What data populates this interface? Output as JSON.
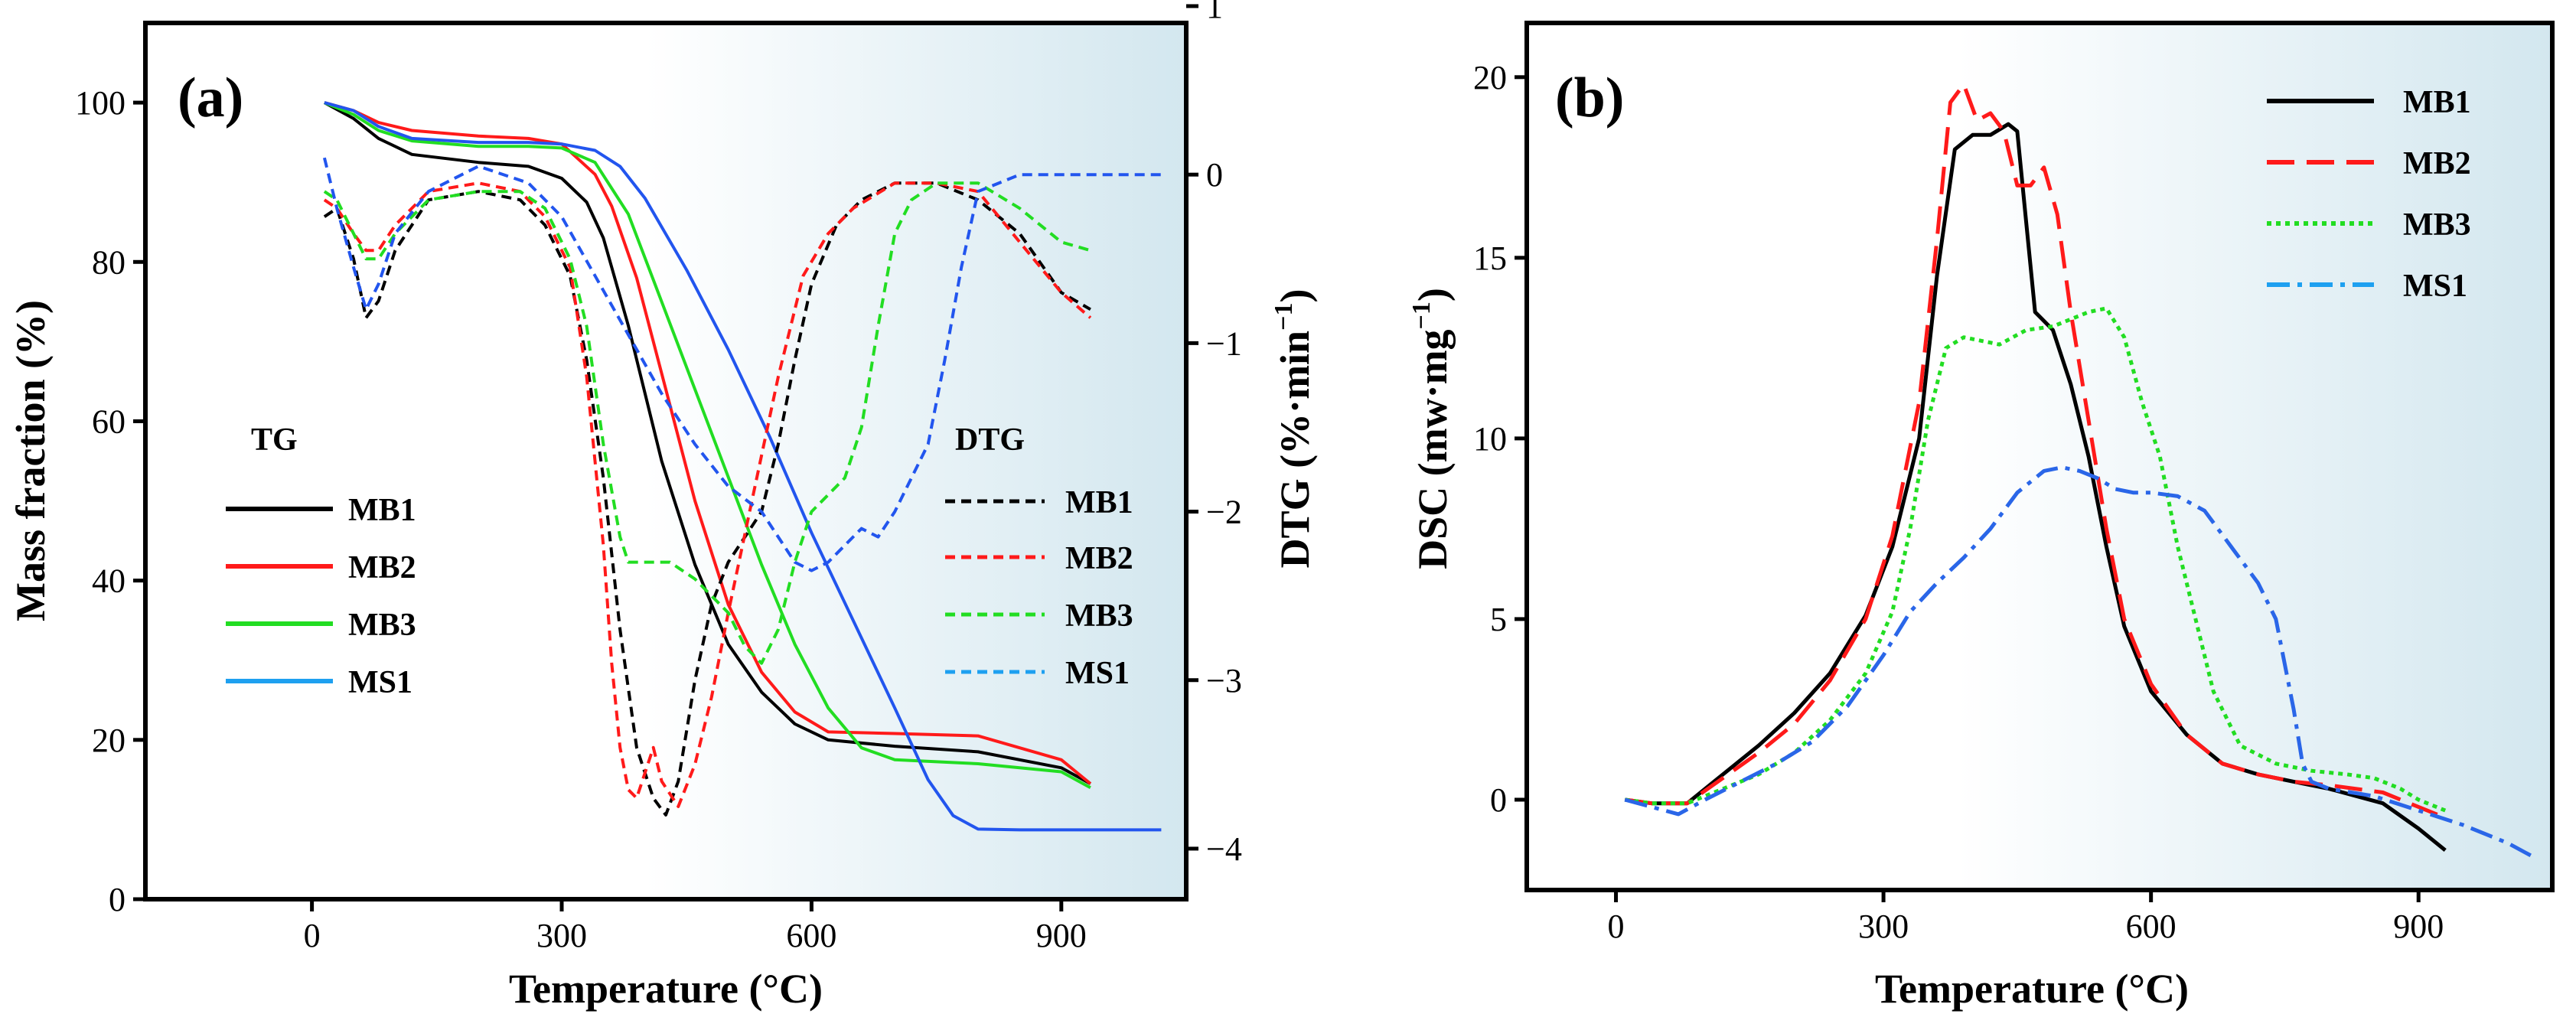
{
  "colors": {
    "MB1": "#000000",
    "MB2": "#ff1a1a",
    "MB3": "#22dd22",
    "MS1": "#2255ee",
    "MS1_dsc": "#2a66e8",
    "MS1_legend_line": "#1ea0f0",
    "background_tint": "#d8eaf0"
  },
  "chart_data": [
    {
      "id": "a",
      "panel_label": "(a)",
      "type": "line",
      "xlabel": "Temperature (°C)",
      "ylabel": "Mass fraction (%)",
      "y2label": "DTG (%·min",
      "y2label_sup": "−1",
      "y2label_close": ")",
      "xlim": [
        -200,
        1050
      ],
      "ylim": [
        0,
        110
      ],
      "y2lim": [
        -4.3,
        0.9
      ],
      "xticks": [
        0,
        300,
        600,
        900
      ],
      "yticks": [
        0,
        20,
        40,
        60,
        80,
        100
      ],
      "y2ticks": [
        1,
        0,
        -1,
        -2,
        -3,
        -4
      ],
      "legend_groups": [
        {
          "title": "TG",
          "items": [
            "MB1",
            "MB2",
            "MB3",
            "MS1"
          ],
          "style": "solid",
          "placement": "center-left"
        },
        {
          "title": "DTG",
          "items": [
            "MB1",
            "MB2",
            "MB3",
            "MS1"
          ],
          "style": "dashed",
          "placement": "center-right"
        }
      ],
      "tg_series": [
        {
          "name": "MB1",
          "x": [
            15,
            50,
            80,
            120,
            200,
            260,
            300,
            330,
            350,
            380,
            420,
            460,
            500,
            540,
            580,
            620,
            700,
            800,
            900,
            935
          ],
          "y": [
            100,
            98,
            95.5,
            93.5,
            92.5,
            92,
            90.5,
            87.5,
            83,
            72,
            55,
            42,
            32,
            26,
            22,
            20,
            19.2,
            18.5,
            16.5,
            14.5
          ]
        },
        {
          "name": "MB2",
          "x": [
            15,
            50,
            80,
            120,
            200,
            260,
            300,
            340,
            360,
            390,
            420,
            460,
            500,
            540,
            580,
            620,
            700,
            800,
            900,
            935
          ],
          "y": [
            100,
            99,
            97.5,
            96.5,
            95.8,
            95.5,
            94.8,
            91,
            87,
            78,
            66,
            50,
            37,
            28.5,
            23.5,
            21,
            20.8,
            20.5,
            17.5,
            14.5
          ]
        },
        {
          "name": "MB3",
          "x": [
            15,
            50,
            80,
            120,
            200,
            260,
            300,
            340,
            380,
            420,
            460,
            500,
            540,
            580,
            620,
            660,
            700,
            800,
            900,
            935
          ],
          "y": [
            100,
            98.5,
            96.5,
            95.2,
            94.5,
            94.5,
            94.3,
            92.5,
            86,
            75,
            64,
            53,
            42,
            32,
            24,
            19,
            17.5,
            17,
            16,
            14
          ]
        },
        {
          "name": "MS1",
          "x": [
            15,
            50,
            80,
            120,
            200,
            260,
            300,
            340,
            370,
            400,
            450,
            500,
            550,
            600,
            650,
            700,
            740,
            770,
            800,
            850,
            950,
            1020
          ],
          "y": [
            100,
            99,
            97,
            95.5,
            95,
            95,
            94.8,
            94,
            92,
            88,
            79,
            69,
            58,
            46,
            35,
            24,
            15,
            10.5,
            8.8,
            8.7,
            8.7,
            8.7
          ]
        }
      ],
      "dtg_series": [
        {
          "name": "MB1",
          "x": [
            15,
            30,
            50,
            65,
            80,
            100,
            140,
            200,
            250,
            280,
            310,
            330,
            350,
            370,
            390,
            410,
            425,
            440,
            460,
            480,
            500,
            520,
            540,
            560,
            580,
            600,
            630,
            660,
            700,
            750,
            800,
            850,
            900,
            935
          ],
          "y": [
            -0.25,
            -0.2,
            -0.5,
            -0.85,
            -0.75,
            -0.45,
            -0.15,
            -0.1,
            -0.15,
            -0.3,
            -0.6,
            -1.1,
            -1.8,
            -2.7,
            -3.4,
            -3.7,
            -3.8,
            -3.6,
            -3.0,
            -2.55,
            -2.3,
            -2.15,
            -2.0,
            -1.6,
            -1.1,
            -0.65,
            -0.3,
            -0.15,
            -0.05,
            -0.05,
            -0.15,
            -0.35,
            -0.7,
            -0.8
          ]
        },
        {
          "name": "MB2",
          "x": [
            15,
            30,
            50,
            65,
            80,
            100,
            140,
            200,
            250,
            280,
            310,
            330,
            350,
            360,
            370,
            380,
            390,
            400,
            410,
            420,
            440,
            460,
            480,
            500,
            530,
            560,
            590,
            620,
            650,
            700,
            750,
            800,
            850,
            900,
            935
          ],
          "y": [
            -0.15,
            -0.2,
            -0.35,
            -0.45,
            -0.45,
            -0.3,
            -0.1,
            -0.05,
            -0.1,
            -0.25,
            -0.55,
            -1.2,
            -2.2,
            -2.9,
            -3.4,
            -3.65,
            -3.7,
            -3.55,
            -3.4,
            -3.6,
            -3.75,
            -3.5,
            -3.1,
            -2.6,
            -1.9,
            -1.2,
            -0.6,
            -0.35,
            -0.2,
            -0.05,
            -0.05,
            -0.1,
            -0.4,
            -0.7,
            -0.85
          ]
        },
        {
          "name": "MB3",
          "x": [
            15,
            30,
            50,
            65,
            80,
            100,
            140,
            200,
            250,
            280,
            310,
            330,
            350,
            370,
            380,
            400,
            430,
            460,
            480,
            500,
            520,
            540,
            560,
            580,
            600,
            620,
            640,
            660,
            680,
            700,
            720,
            750,
            800,
            850,
            900,
            935
          ],
          "y": [
            -0.1,
            -0.15,
            -0.35,
            -0.5,
            -0.5,
            -0.35,
            -0.15,
            -0.1,
            -0.1,
            -0.2,
            -0.5,
            -0.9,
            -1.6,
            -2.15,
            -2.3,
            -2.3,
            -2.3,
            -2.4,
            -2.5,
            -2.6,
            -2.8,
            -2.9,
            -2.7,
            -2.3,
            -2.0,
            -1.9,
            -1.8,
            -1.5,
            -0.9,
            -0.35,
            -0.15,
            -0.05,
            -0.05,
            -0.2,
            -0.4,
            -0.45
          ]
        },
        {
          "name": "MS1",
          "x": [
            15,
            30,
            50,
            65,
            80,
            100,
            140,
            200,
            260,
            300,
            340,
            380,
            420,
            460,
            500,
            540,
            580,
            600,
            620,
            640,
            660,
            680,
            700,
            720,
            740,
            760,
            780,
            800,
            850,
            900,
            950,
            1020
          ],
          "y": [
            0.1,
            -0.2,
            -0.55,
            -0.8,
            -0.65,
            -0.35,
            -0.1,
            0.05,
            -0.05,
            -0.25,
            -0.6,
            -0.95,
            -1.3,
            -1.6,
            -1.85,
            -2.0,
            -2.3,
            -2.35,
            -2.3,
            -2.2,
            -2.1,
            -2.15,
            -2.0,
            -1.8,
            -1.6,
            -1.1,
            -0.55,
            -0.1,
            0.0,
            0.0,
            0.0,
            0.0
          ]
        }
      ]
    },
    {
      "id": "b",
      "panel_label": "(b)",
      "type": "line",
      "xlabel": "Temperature (°C)",
      "ylabel": "DSC (mw·mg",
      "ylabel_sup": "−1",
      "ylabel_close": ")",
      "xlim": [
        -100,
        1050
      ],
      "ylim": [
        -2.5,
        21.5
      ],
      "xticks": [
        0,
        300,
        600,
        900
      ],
      "yticks": [
        0,
        5,
        10,
        15,
        20
      ],
      "legend_placement": "top-right",
      "series": [
        {
          "name": "MB1",
          "style": "solid",
          "x": [
            10,
            40,
            80,
            120,
            160,
            200,
            240,
            280,
            310,
            340,
            360,
            380,
            400,
            420,
            440,
            450,
            460,
            470,
            490,
            510,
            530,
            550,
            570,
            600,
            640,
            680,
            720,
            760,
            800,
            860,
            900,
            930
          ],
          "y": [
            0,
            -0.1,
            -0.1,
            0.7,
            1.5,
            2.4,
            3.5,
            5.1,
            7.0,
            10.0,
            14.5,
            18.0,
            18.4,
            18.4,
            18.7,
            18.5,
            16.0,
            13.5,
            13.0,
            11.5,
            9.5,
            7.0,
            4.8,
            3.0,
            1.8,
            1.0,
            0.7,
            0.5,
            0.3,
            -0.1,
            -0.8,
            -1.4
          ]
        },
        {
          "name": "MB2",
          "style": "long-dash",
          "x": [
            10,
            40,
            80,
            120,
            160,
            200,
            240,
            280,
            310,
            340,
            360,
            375,
            390,
            405,
            420,
            435,
            450,
            465,
            480,
            495,
            510,
            530,
            550,
            570,
            600,
            640,
            680,
            720,
            760,
            800,
            860,
            900,
            930
          ],
          "y": [
            0,
            -0.1,
            -0.1,
            0.6,
            1.3,
            2.1,
            3.3,
            5.0,
            7.3,
            11.0,
            15.5,
            19.3,
            19.8,
            18.8,
            19.0,
            18.5,
            17.0,
            17.0,
            17.5,
            16.2,
            13.5,
            10.5,
            7.5,
            5.0,
            3.2,
            1.8,
            1.0,
            0.7,
            0.5,
            0.4,
            0.2,
            -0.2,
            -0.5
          ]
        },
        {
          "name": "MB3",
          "style": "dotted",
          "x": [
            10,
            40,
            80,
            120,
            160,
            200,
            240,
            280,
            310,
            330,
            350,
            370,
            390,
            410,
            430,
            460,
            490,
            510,
            530,
            550,
            570,
            590,
            610,
            630,
            650,
            670,
            700,
            740,
            780,
            820,
            850,
            880,
            900,
            930
          ],
          "y": [
            0,
            -0.1,
            -0.1,
            0.3,
            0.7,
            1.3,
            2.2,
            3.5,
            5.2,
            7.5,
            10.5,
            12.5,
            12.8,
            12.7,
            12.6,
            13.0,
            13.1,
            13.3,
            13.5,
            13.6,
            12.8,
            11.0,
            9.5,
            7.0,
            5.0,
            3.0,
            1.5,
            1.0,
            0.8,
            0.7,
            0.6,
            0.3,
            0.0,
            -0.3
          ]
        },
        {
          "name": "MS1",
          "style": "dash-dot",
          "x": [
            10,
            40,
            70,
            100,
            140,
            180,
            220,
            260,
            300,
            330,
            360,
            390,
            420,
            450,
            480,
            500,
            520,
            540,
            560,
            580,
            600,
            630,
            660,
            690,
            720,
            740,
            760,
            770,
            780,
            800,
            850,
            900,
            950,
            1000,
            1030
          ],
          "y": [
            0,
            -0.2,
            -0.4,
            0.0,
            0.5,
            1.0,
            1.6,
            2.6,
            4.0,
            5.2,
            6.0,
            6.7,
            7.5,
            8.5,
            9.1,
            9.2,
            9.1,
            8.9,
            8.6,
            8.5,
            8.5,
            8.4,
            8.0,
            7.0,
            6.0,
            5.0,
            2.5,
            1.0,
            0.5,
            0.3,
            0.1,
            -0.3,
            -0.7,
            -1.2,
            -1.6
          ]
        }
      ]
    }
  ]
}
